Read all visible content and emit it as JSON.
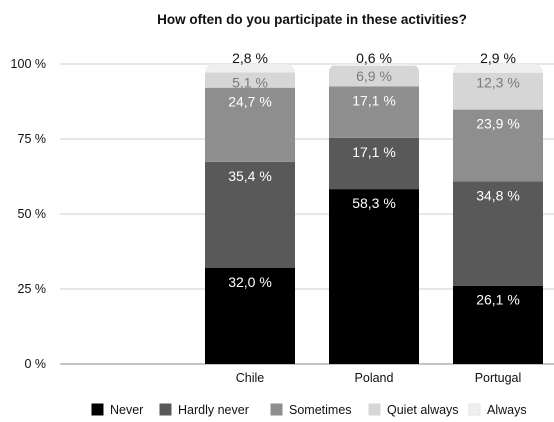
{
  "chart_data": {
    "type": "bar",
    "stacked": true,
    "title": "How often do you participate in these activities?",
    "categories": [
      "Chile",
      "Poland",
      "Portugal"
    ],
    "y_ticks": [
      "0 %",
      "25 %",
      "50 %",
      "75 %",
      "100 %"
    ],
    "ylim": [
      0,
      100
    ],
    "grid": true,
    "legend_position": "bottom",
    "series": [
      {
        "name": "Never",
        "color": "#000000",
        "label_color": "#ffffff",
        "values": [
          32.0,
          58.3,
          26.1
        ],
        "labels": [
          "32,0 %",
          "58,3 %",
          "26,1 %"
        ]
      },
      {
        "name": "Hardly never",
        "color": "#595959",
        "label_color": "#ffffff",
        "values": [
          35.4,
          17.1,
          34.8
        ],
        "labels": [
          "35,4 %",
          "17,1 %",
          "34,8 %"
        ]
      },
      {
        "name": "Sometimes",
        "color": "#8e8e8e",
        "label_color": "#ffffff",
        "values": [
          24.7,
          17.1,
          23.9
        ],
        "labels": [
          "24,7 %",
          "17,1 %",
          "23,9 %"
        ]
      },
      {
        "name": "Quiet always",
        "color": "#d6d6d6",
        "label_color": "#7a7a7a",
        "values": [
          5.1,
          6.9,
          12.3
        ],
        "labels": [
          "5,1 %",
          "6,9 %",
          "12,3 %"
        ]
      },
      {
        "name": "Always",
        "color": "#efefef",
        "label_color": "#111111",
        "values": [
          2.8,
          0.6,
          2.9
        ],
        "labels": [
          "2,8 %",
          "0,6 %",
          "2,9 %"
        ]
      }
    ]
  }
}
